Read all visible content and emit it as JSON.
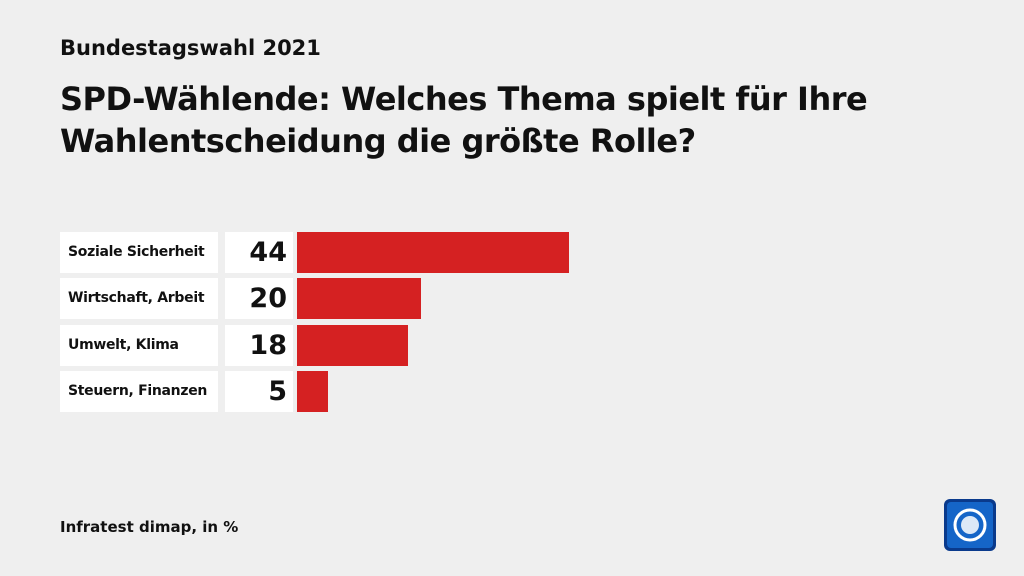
{
  "chart_data": {
    "type": "bar",
    "orientation": "horizontal",
    "supertitle": "Bundestagswahl 2021",
    "title": "SPD-Wählende: Welches Thema spielt für Ihre Wahlentscheidung die größte Rolle?",
    "categories": [
      "Soziale Sicherheit",
      "Wirtschaft, Arbeit",
      "Umwelt, Klima",
      "Steuern, Finanzen"
    ],
    "values": [
      44,
      20,
      18,
      5
    ],
    "color": "#d52122",
    "source": "Infratest dimap, in %"
  }
}
